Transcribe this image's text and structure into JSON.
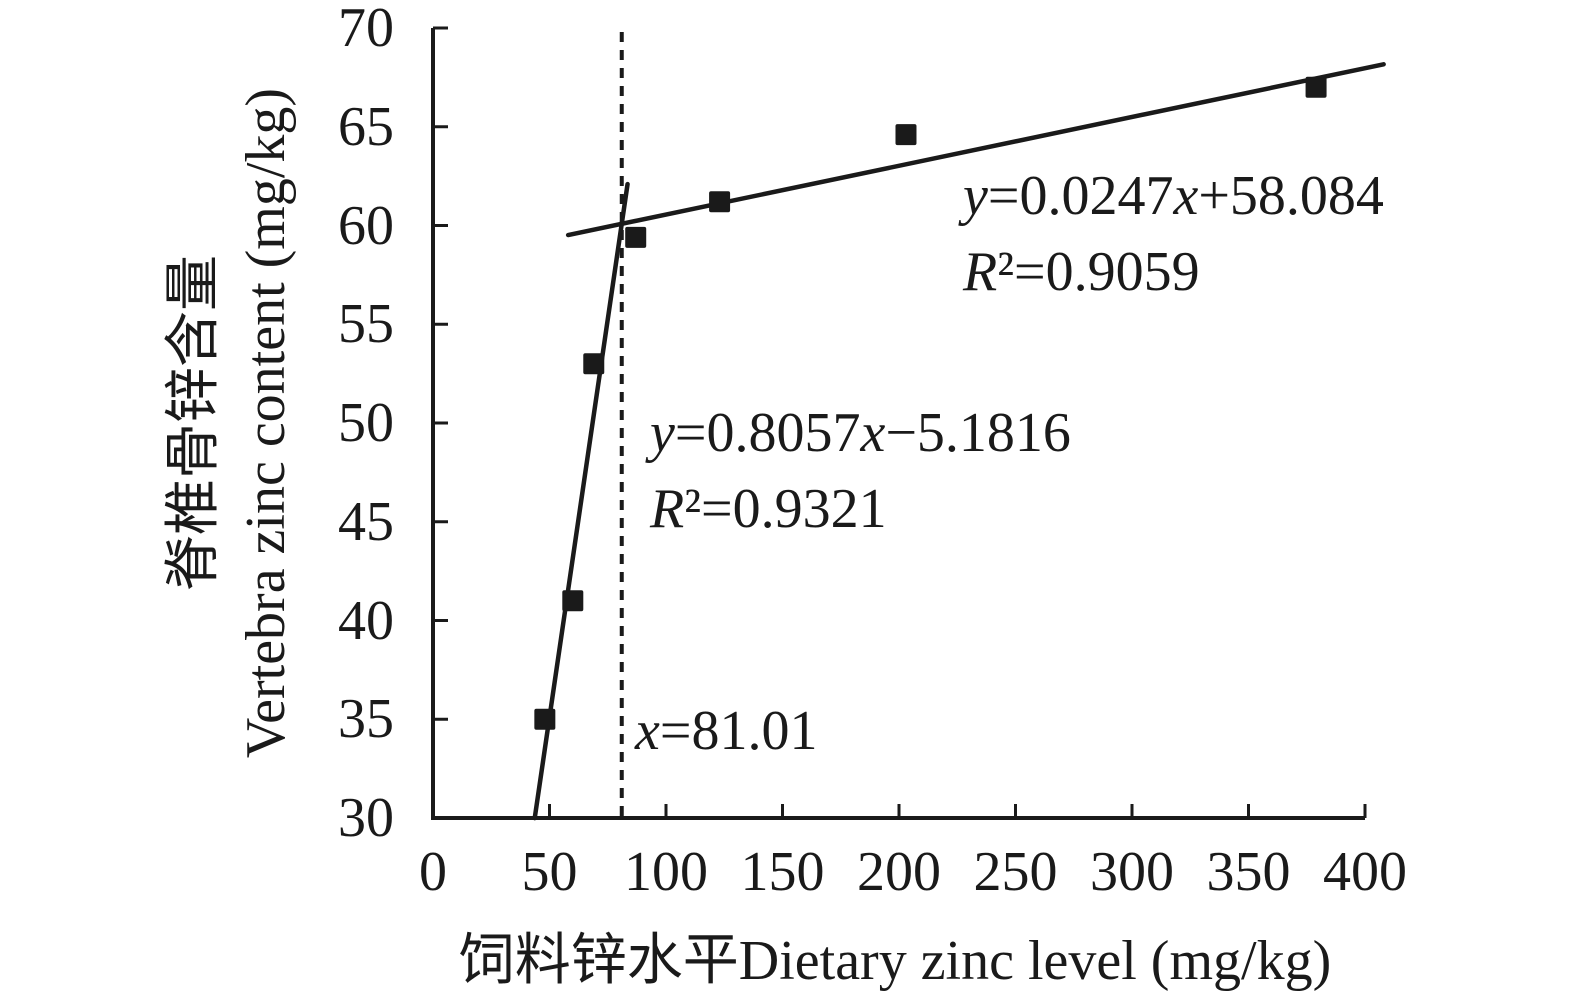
{
  "figure": {
    "background": "#ffffff",
    "ink_color": "#1a1a1a"
  },
  "chart_data": {
    "type": "scatter",
    "title": "",
    "xlabel": "饲料锌水平Dietary zinc level (mg/kg)",
    "ylabel_line1": "脊椎骨锌含量",
    "ylabel_line2": "Vertebra zinc content (mg/kg)",
    "xlim": [
      0,
      400
    ],
    "ylim": [
      30,
      70
    ],
    "x_ticks": [
      0,
      50,
      100,
      150,
      200,
      250,
      300,
      350,
      400
    ],
    "y_ticks": [
      30,
      35,
      40,
      45,
      50,
      55,
      60,
      65,
      70
    ],
    "grid": false,
    "legend": "none",
    "marker": "filled-square",
    "points": [
      {
        "x": 48,
        "y": 35.0
      },
      {
        "x": 60,
        "y": 41.0
      },
      {
        "x": 69,
        "y": 53.0
      },
      {
        "x": 87,
        "y": 59.4
      },
      {
        "x": 123,
        "y": 61.2
      },
      {
        "x": 203,
        "y": 64.6
      },
      {
        "x": 379,
        "y": 67.0
      }
    ],
    "segments": [
      {
        "name": "steep-regression-line",
        "equation": "y=0.8057x−5.1816",
        "r_squared": "R²=0.9321",
        "slope": 0.8057,
        "intercept": -5.1816,
        "x_start": 43.66,
        "x_end": 83.5,
        "style": "solid"
      },
      {
        "name": "flat-regression-line",
        "equation": "y=0.0247x+58.084",
        "r_squared": "R²=0.9059",
        "slope": 0.0247,
        "intercept": 58.084,
        "x_start": 58,
        "x_end": 408,
        "style": "solid"
      }
    ],
    "breakpoint_line": {
      "x": 81.01,
      "label": "x=81.01",
      "style": "dotted"
    }
  }
}
